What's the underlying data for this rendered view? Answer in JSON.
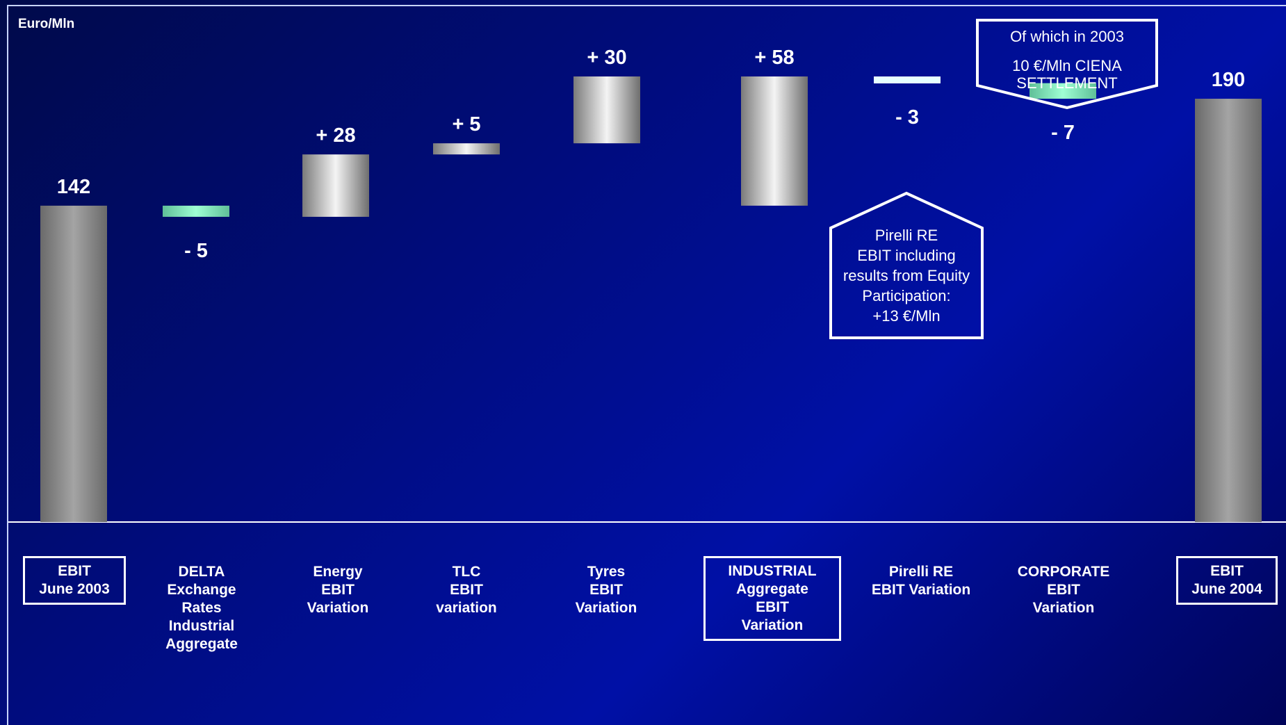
{
  "unit_label": "Euro/Mln",
  "chart_data": {
    "type": "bar",
    "subtype": "waterfall",
    "categories": [
      "EBIT\nJune 2003",
      "DELTA\nExchange\nRates\nIndustrial\nAggregate",
      "Energy\nEBIT\nVariation",
      "TLC\nEBIT\nvariation",
      "Tyres\nEBIT\nVariation",
      "INDUSTRIAL\nAggregate\nEBIT\nVariation",
      "Pirelli RE\nEBIT Variation",
      "CORPORATE\nEBIT\nVariation",
      "EBIT\nJune 2004"
    ],
    "bars": [
      {
        "kind": "total",
        "start": 0,
        "end": 142,
        "label": "142",
        "color": "grey",
        "boxed": true
      },
      {
        "kind": "delta",
        "start": 142,
        "end": 137,
        "label": "- 5",
        "color": "green",
        "boxed": false
      },
      {
        "kind": "delta",
        "start": 137,
        "end": 165,
        "label": "+ 28",
        "color": "silver",
        "boxed": false
      },
      {
        "kind": "delta",
        "start": 165,
        "end": 170,
        "label": "+ 5",
        "color": "silver",
        "boxed": false
      },
      {
        "kind": "delta",
        "start": 170,
        "end": 200,
        "label": "+ 30",
        "color": "silver",
        "boxed": false
      },
      {
        "kind": "delta",
        "start": 142,
        "end": 200,
        "label": "+ 58",
        "color": "silver",
        "boxed": true
      },
      {
        "kind": "delta",
        "start": 200,
        "end": 197,
        "label": "- 3",
        "color": "line",
        "boxed": false
      },
      {
        "kind": "delta",
        "start": 197,
        "end": 190,
        "label": "- 7",
        "color": "green",
        "boxed": false
      },
      {
        "kind": "total",
        "start": 0,
        "end": 190,
        "label": "190",
        "color": "grey",
        "boxed": true
      }
    ],
    "ylim": [
      0,
      210
    ]
  },
  "annotations": {
    "pirelli_re": [
      "Pirelli RE",
      "EBIT including",
      "results from Equity",
      "Participation:",
      "+13  €/Mln"
    ],
    "corporate": [
      "Of which in 2003",
      "10  €/Mln CIENA",
      "SETTLEMENT"
    ]
  }
}
